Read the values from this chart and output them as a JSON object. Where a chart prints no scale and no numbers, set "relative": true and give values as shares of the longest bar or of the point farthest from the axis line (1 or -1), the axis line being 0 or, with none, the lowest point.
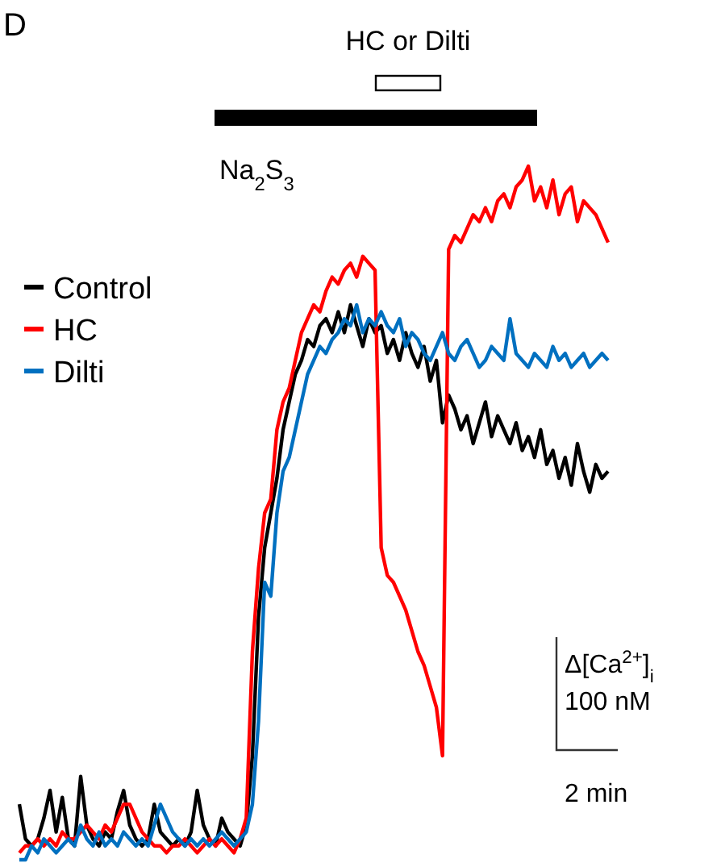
{
  "chart_data": {
    "type": "line",
    "title": "D",
    "relative": true,
    "legend": "top left",
    "marker": "none",
    "line_style": "solid",
    "annotations": [
      "HC or Dilti",
      "Na$_{2}$S$_{3}$",
      "Δ[Ca$^{2+}$]$_{i}$",
      "100 nM",
      "2 min"
    ],
    "categories": [
      null,
      null,
      null,
      null,
      null,
      null,
      null,
      null,
      null,
      null,
      null,
      null,
      null,
      null,
      null,
      null,
      null,
      null,
      null,
      null,
      null,
      null,
      null,
      null,
      null,
      null,
      null,
      null,
      null,
      null,
      null,
      null,
      null,
      null,
      null,
      null,
      null,
      null,
      null,
      null,
      null,
      null,
      null,
      null,
      null,
      null,
      null,
      null,
      null,
      null,
      null,
      null,
      null,
      null,
      null,
      null,
      null,
      null,
      null,
      null,
      null,
      null,
      null,
      null,
      null,
      null,
      null,
      null,
      null,
      null,
      null,
      null,
      null,
      null,
      null,
      null,
      null,
      null,
      null,
      null,
      null,
      null,
      null,
      null,
      null,
      null,
      null,
      null,
      null,
      null,
      null,
      null,
      null,
      null,
      null,
      null,
      null
    ],
    "series": [
      {
        "name": "Control",
        "color": "#000000",
        "values": [
          0.08,
          0.03,
          0.02,
          0.03,
          0.06,
          0.1,
          0.04,
          0.09,
          0.03,
          0.02,
          0.12,
          0.05,
          0.03,
          0.02,
          0.04,
          0.03,
          0.07,
          0.1,
          0.05,
          0.03,
          0.02,
          0.03,
          0.08,
          0.04,
          0.03,
          0.02,
          0.03,
          0.02,
          0.04,
          0.1,
          0.05,
          0.03,
          0.02,
          0.06,
          0.04,
          0.03,
          0.02,
          0.05,
          0.15,
          0.35,
          0.45,
          0.5,
          0.55,
          0.62,
          0.66,
          0.7,
          0.72,
          0.75,
          0.74,
          0.77,
          0.78,
          0.76,
          0.79,
          0.76,
          0.8,
          0.77,
          0.74,
          0.78,
          0.76,
          0.77,
          0.73,
          0.75,
          0.72,
          0.76,
          0.73,
          0.71,
          0.74,
          0.69,
          0.72,
          0.63,
          0.67,
          0.65,
          0.62,
          0.64,
          0.6,
          0.63,
          0.66,
          0.61,
          0.64,
          0.62,
          0.6,
          0.63,
          0.59,
          0.61,
          0.58,
          0.62,
          0.57,
          0.59,
          0.55,
          0.58,
          0.54,
          0.6,
          0.56,
          0.53,
          0.57,
          0.55,
          0.56
        ]
      },
      {
        "name": "HC",
        "color": "#ff0000",
        "values": [
          0.01,
          0.02,
          0.02,
          0.03,
          0.02,
          0.03,
          0.02,
          0.04,
          0.03,
          0.03,
          0.04,
          0.05,
          0.04,
          0.03,
          0.05,
          0.04,
          0.06,
          0.08,
          0.08,
          0.06,
          0.04,
          0.03,
          0.02,
          0.02,
          0.01,
          0.02,
          0.02,
          0.03,
          0.02,
          0.01,
          0.02,
          0.03,
          0.02,
          0.03,
          0.02,
          0.01,
          0.03,
          0.06,
          0.3,
          0.42,
          0.5,
          0.52,
          0.62,
          0.66,
          0.68,
          0.72,
          0.76,
          0.78,
          0.8,
          0.79,
          0.82,
          0.84,
          0.83,
          0.85,
          0.86,
          0.84,
          0.87,
          0.86,
          0.85,
          0.45,
          0.41,
          0.4,
          0.38,
          0.36,
          0.33,
          0.3,
          0.28,
          0.25,
          0.22,
          0.15,
          0.88,
          0.9,
          0.89,
          0.91,
          0.93,
          0.92,
          0.94,
          0.92,
          0.95,
          0.96,
          0.94,
          0.97,
          0.98,
          1.0,
          0.95,
          0.97,
          0.94,
          0.98,
          0.93,
          0.96,
          0.97,
          0.92,
          0.95,
          0.94,
          0.93,
          0.91,
          0.89
        ]
      },
      {
        "name": "Dilti",
        "color": "#0070c0",
        "values": [
          0.0,
          0.0,
          0.02,
          0.01,
          0.03,
          0.02,
          0.01,
          0.02,
          0.03,
          0.02,
          0.05,
          0.03,
          0.02,
          0.04,
          0.02,
          0.03,
          0.02,
          0.04,
          0.03,
          0.02,
          0.03,
          0.02,
          0.05,
          0.08,
          0.06,
          0.04,
          0.03,
          0.02,
          0.03,
          0.02,
          0.03,
          0.02,
          0.03,
          0.04,
          0.03,
          0.02,
          0.03,
          0.04,
          0.08,
          0.2,
          0.4,
          0.38,
          0.5,
          0.56,
          0.58,
          0.62,
          0.66,
          0.7,
          0.72,
          0.74,
          0.73,
          0.75,
          0.76,
          0.78,
          0.77,
          0.8,
          0.76,
          0.78,
          0.77,
          0.79,
          0.77,
          0.76,
          0.78,
          0.74,
          0.76,
          0.75,
          0.73,
          0.72,
          0.74,
          0.76,
          0.73,
          0.72,
          0.74,
          0.75,
          0.73,
          0.71,
          0.72,
          0.74,
          0.73,
          0.72,
          0.78,
          0.73,
          0.72,
          0.71,
          0.73,
          0.72,
          0.71,
          0.74,
          0.72,
          0.73,
          0.71,
          0.72,
          0.73,
          0.71,
          0.72,
          0.73,
          0.72
        ]
      }
    ]
  }
}
